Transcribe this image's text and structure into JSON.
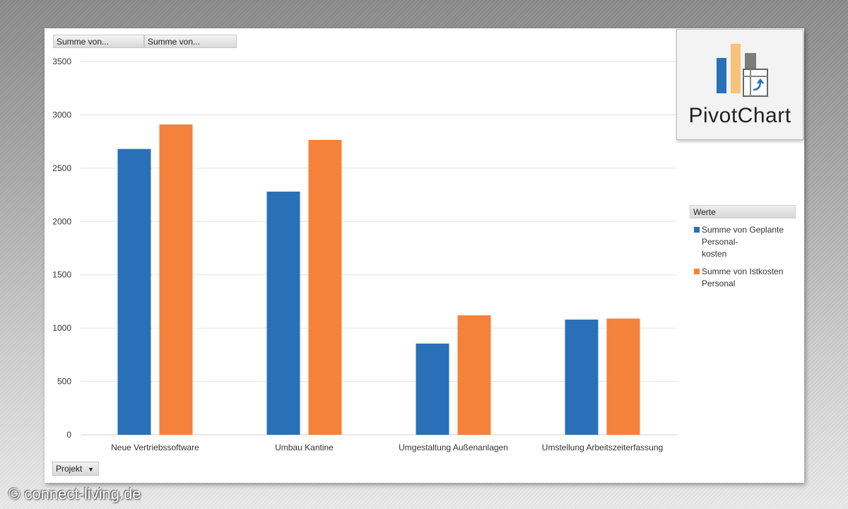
{
  "field_buttons": [
    "Summe von...",
    "Summe von..."
  ],
  "pivot_icon": {
    "label": "PivotChart",
    "icon": "pivotchart-icon"
  },
  "legend": {
    "title": "Werte",
    "items": [
      {
        "lines": [
          "Summe von Geplante",
          "Personal-",
          "kosten"
        ],
        "color": "#2a70b8"
      },
      {
        "lines": [
          "Summe von Istkosten",
          "Personal"
        ],
        "color": "#f5823a"
      }
    ]
  },
  "filter": {
    "label": "Projekt",
    "icon": "dropdown-arrow-icon"
  },
  "watermark": "© connect-living.de",
  "chart_data": {
    "type": "bar",
    "categories": [
      "Neue Vertriebssoftware",
      "Umbau Kantine",
      "Umgestaltung Außenanlagen",
      "Umstellung Arbeitszeiterfassung"
    ],
    "series": [
      {
        "name": "Summe von Geplante Personal-kosten",
        "values": [
          2680,
          2280,
          855,
          1080
        ],
        "color": "#2a70b8"
      },
      {
        "name": "Summe von Istkosten Personal",
        "values": [
          2910,
          2765,
          1120,
          1090
        ],
        "color": "#f5823a"
      }
    ],
    "yticks": [
      0,
      500,
      1000,
      1500,
      2000,
      2500,
      3000,
      3500
    ],
    "ylim": [
      0,
      3500
    ],
    "grid": true,
    "legend_position": "right"
  }
}
